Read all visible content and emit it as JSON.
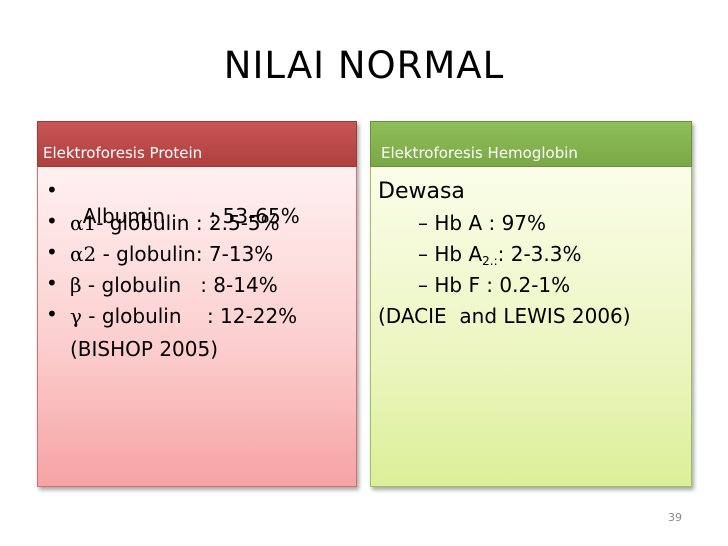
{
  "slide": {
    "title": "NILAI NORMAL",
    "page_number": "39"
  },
  "left": {
    "header": "Elektroforesis Protein",
    "items": [
      {
        "symbol": "",
        "text": "Albumin       : 53-65%"
      },
      {
        "symbol": "α1",
        "text": "- globulin : 2.5-5%"
      },
      {
        "symbol": "α2",
        "text": " - globulin: 7-13%"
      },
      {
        "symbol": "β",
        "text": " - globulin   : 8-14%"
      },
      {
        "symbol": "γ",
        "text": " - globulin    : 12-22%"
      }
    ],
    "source": "(BISHOP 2005)"
  },
  "right": {
    "header": "Elektroforesis Hemoglobin",
    "heading": "Dewasa",
    "item_hba": "– Hb A : 97%",
    "item_hba2_prefix": "– Hb A",
    "item_hba2_sub": "2.:",
    "item_hba2_suffix": ": 2-3.3%",
    "item_hbf": "– Hb F : 0.2-1%",
    "source": "(DACIE  and LEWIS 2006)"
  }
}
